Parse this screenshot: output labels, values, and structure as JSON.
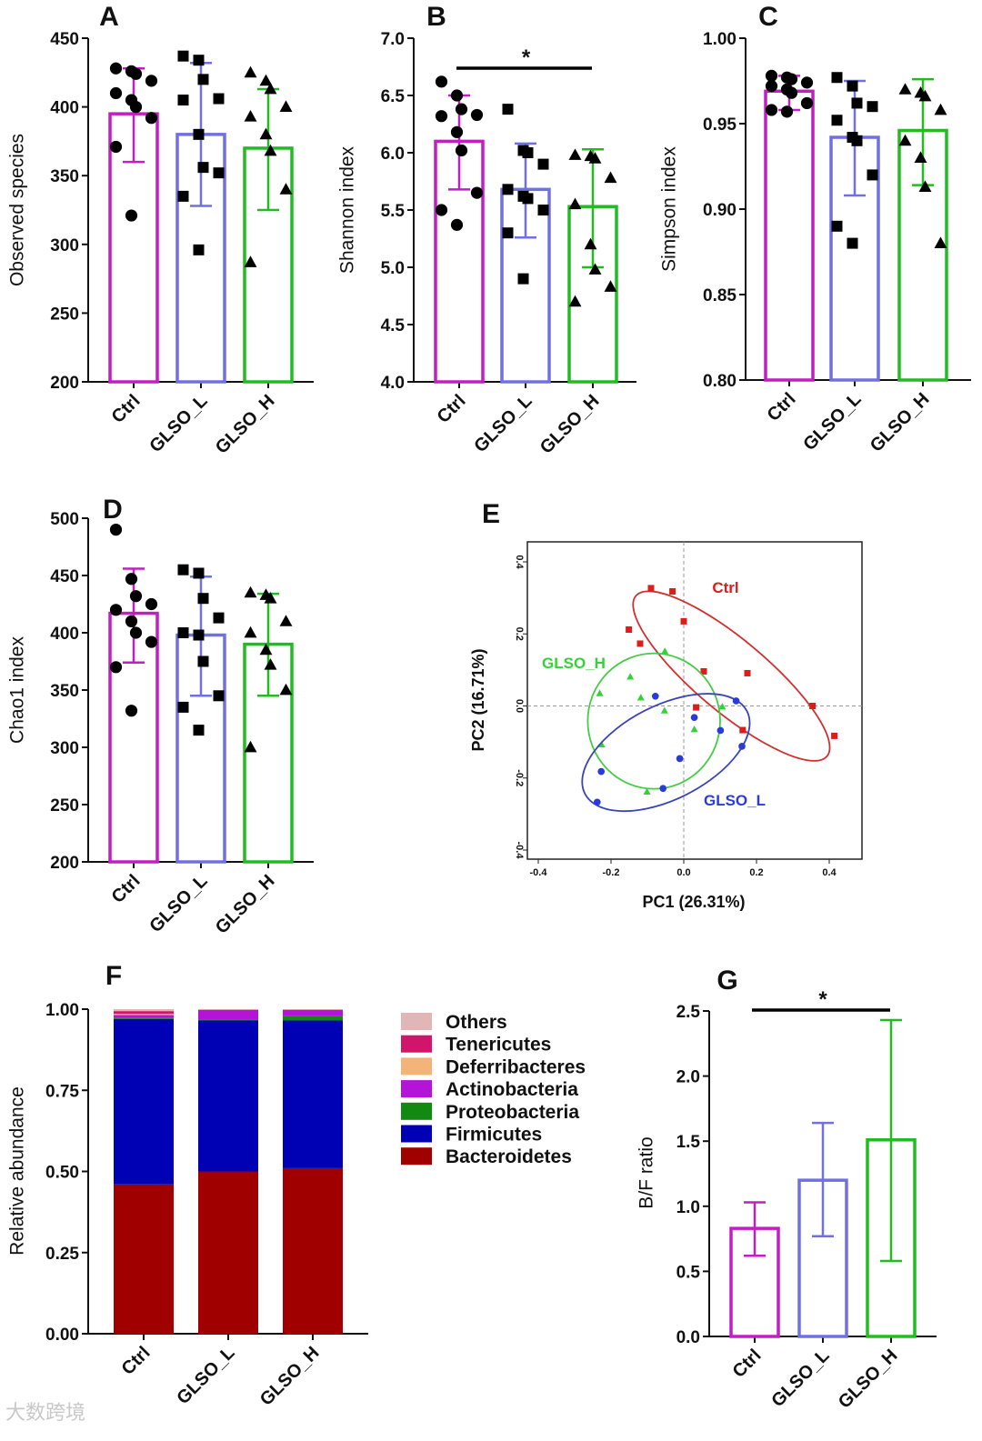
{
  "colors": {
    "Ctrl": "#c21fc2",
    "GLSO_L": "#7070e0",
    "GLSO_H": "#22bb22"
  },
  "watermark": "大数跨境",
  "chart_data": [
    {
      "type": "bar",
      "letter": "A",
      "ylabel": "Observed species",
      "ylim": [
        200,
        450
      ],
      "ticks": [
        200,
        250,
        300,
        350,
        400,
        450
      ],
      "tick_labels": [
        "200",
        "250",
        "300",
        "350",
        "400",
        "450"
      ],
      "categories": [
        "Ctrl",
        "GLSO_L",
        "GLSO_H"
      ],
      "means": [
        395,
        380,
        370
      ],
      "err_low": [
        360,
        328,
        325
      ],
      "err_high": [
        428,
        432,
        413
      ],
      "markers": [
        "circle",
        "square",
        "triangle"
      ],
      "points": [
        [
          428,
          426,
          424,
          419,
          410,
          405,
          400,
          392,
          371,
          321
        ],
        [
          437,
          434,
          420,
          406,
          405,
          380,
          356,
          352,
          335,
          296
        ],
        [
          425,
          419,
          413,
          400,
          393,
          380,
          368,
          340,
          287
        ]
      ],
      "significance": null
    },
    {
      "type": "bar",
      "letter": "B",
      "ylabel": "Shannon index",
      "ylim": [
        4.0,
        7.0
      ],
      "ticks": [
        4.0,
        4.5,
        5.0,
        5.5,
        6.0,
        6.5,
        7.0
      ],
      "tick_labels": [
        "4.0",
        "4.5",
        "5.0",
        "5.5",
        "6.0",
        "6.5",
        "7.0"
      ],
      "categories": [
        "Ctrl",
        "GLSO_L",
        "GLSO_H"
      ],
      "means": [
        6.1,
        5.68,
        5.53
      ],
      "err_low": [
        5.68,
        5.26,
        5.0
      ],
      "err_high": [
        6.5,
        6.08,
        6.03
      ],
      "markers": [
        "circle",
        "square",
        "triangle"
      ],
      "points": [
        [
          6.62,
          6.5,
          6.38,
          6.33,
          6.32,
          6.18,
          6.02,
          5.65,
          5.5,
          5.37
        ],
        [
          6.38,
          6.02,
          6.0,
          5.9,
          5.68,
          5.62,
          5.6,
          5.5,
          5.3,
          4.9
        ],
        [
          5.98,
          5.97,
          5.95,
          5.78,
          5.55,
          5.2,
          4.98,
          4.83,
          4.7
        ]
      ],
      "significance": {
        "from": "Ctrl",
        "to": "GLSO_H",
        "label": "*"
      }
    },
    {
      "type": "bar",
      "letter": "C",
      "ylabel": "Simpson index",
      "ylim": [
        0.8,
        1.0
      ],
      "ticks": [
        0.8,
        0.85,
        0.9,
        0.95,
        1.0
      ],
      "tick_labels": [
        "0.80",
        "0.85",
        "0.90",
        "0.95",
        "1.00"
      ],
      "categories": [
        "Ctrl",
        "GLSO_L",
        "GLSO_H"
      ],
      "means": [
        0.969,
        0.942,
        0.946
      ],
      "err_low": [
        0.958,
        0.908,
        0.914
      ],
      "err_high": [
        0.978,
        0.975,
        0.976
      ],
      "markers": [
        "circle",
        "square",
        "triangle"
      ],
      "points": [
        [
          0.978,
          0.977,
          0.976,
          0.974,
          0.972,
          0.97,
          0.968,
          0.962,
          0.958,
          0.957
        ],
        [
          0.977,
          0.972,
          0.962,
          0.96,
          0.952,
          0.942,
          0.94,
          0.92,
          0.89,
          0.88
        ],
        [
          0.97,
          0.968,
          0.966,
          0.958,
          0.94,
          0.93,
          0.913,
          0.88
        ]
      ],
      "significance": null
    },
    {
      "type": "bar",
      "letter": "D",
      "ylabel": "Chao1 index",
      "ylim": [
        200,
        500
      ],
      "ticks": [
        200,
        250,
        300,
        350,
        400,
        450,
        500
      ],
      "tick_labels": [
        "200",
        "250",
        "300",
        "350",
        "400",
        "450",
        "500"
      ],
      "categories": [
        "Ctrl",
        "GLSO_L",
        "GLSO_H"
      ],
      "means": [
        417,
        398,
        390
      ],
      "err_low": [
        374,
        345,
        345
      ],
      "err_high": [
        456,
        449,
        434
      ],
      "markers": [
        "circle",
        "square",
        "triangle"
      ],
      "points": [
        [
          490,
          447,
          432,
          425,
          420,
          410,
          400,
          392,
          370,
          332
        ],
        [
          455,
          452,
          430,
          413,
          400,
          398,
          375,
          345,
          335,
          315
        ],
        [
          435,
          433,
          430,
          410,
          400,
          385,
          372,
          350,
          300
        ]
      ],
      "significance": null
    },
    {
      "type": "scatter",
      "letter": "E",
      "xlabel": "PC1 (26.31%)",
      "ylabel": "PC2 (16.71%)",
      "xlim": [
        -0.45,
        0.45
      ],
      "ylim": [
        -0.45,
        0.45
      ],
      "ticks": [
        -0.4,
        -0.2,
        0.0,
        0.2,
        0.4
      ],
      "tick_labels": [
        "-0.4",
        "-0.2",
        "0.0",
        "0.2",
        "0.4"
      ],
      "series": [
        {
          "name": "Ctrl",
          "marker": "square",
          "x": [
            -0.09,
            -0.031,
            0.0,
            -0.151,
            -0.12,
            0.055,
            0.175,
            0.034,
            0.354,
            0.162,
            0.414
          ],
          "y": [
            0.327,
            0.318,
            0.235,
            0.212,
            0.173,
            0.096,
            0.091,
            -0.004,
            0.0,
            -0.067,
            -0.083
          ],
          "ellipse": {
            "cx": 0.131,
            "cy": 0.083,
            "rx": 0.343,
            "ry": 0.1,
            "angle": -40
          }
        },
        {
          "name": "GLSO_H",
          "marker": "triangle",
          "x": [
            -0.052,
            -0.147,
            -0.231,
            -0.118,
            -0.053,
            0.106,
            0.029,
            -0.226,
            -0.101
          ],
          "y": [
            0.152,
            0.081,
            0.035,
            0.023,
            -0.013,
            -0.002,
            -0.065,
            -0.107,
            -0.238
          ],
          "ellipse": {
            "cx": -0.082,
            "cy": -0.042,
            "rx": 0.182,
            "ry": 0.188,
            "angle": 0
          }
        },
        {
          "name": "GLSO_L",
          "marker": "circle",
          "x": [
            -0.078,
            0.144,
            0.029,
            0.101,
            0.16,
            -0.011,
            -0.227,
            -0.057,
            -0.238
          ],
          "y": [
            0.027,
            0.014,
            -0.032,
            -0.068,
            -0.112,
            -0.146,
            -0.182,
            -0.229,
            -0.267
          ],
          "ellipse": {
            "cx": -0.049,
            "cy": -0.129,
            "rx": 0.25,
            "ry": 0.13,
            "angle": 27
          }
        }
      ]
    },
    {
      "type": "bar",
      "stacked": true,
      "letter": "F",
      "ylabel": "Relative abundance",
      "ylim": [
        0,
        1
      ],
      "ticks": [
        0,
        0.25,
        0.5,
        0.75,
        1.0
      ],
      "tick_labels": [
        "0.00",
        "0.25",
        "0.50",
        "0.75",
        "1.00"
      ],
      "categories": [
        "Ctrl",
        "GLSO_L",
        "GLSO_H"
      ],
      "series": [
        {
          "name": "Bacteroidetes",
          "color": "#a00000",
          "values": [
            0.46,
            0.5,
            0.51
          ]
        },
        {
          "name": "Firmicutes",
          "color": "#0000b4",
          "values": [
            0.51,
            0.465,
            0.455
          ]
        },
        {
          "name": "Proteobacteria",
          "color": "#128a12",
          "values": [
            0.004,
            0.003,
            0.015
          ]
        },
        {
          "name": "Actinobacteria",
          "color": "#b414d8",
          "values": [
            0.008,
            0.03,
            0.018
          ]
        },
        {
          "name": "Deferribacteres",
          "color": "#f3b47a",
          "values": [
            0.004,
            0.001,
            0.001
          ]
        },
        {
          "name": "Tenericutes",
          "color": "#d0156a",
          "values": [
            0.008,
            0.0005,
            0.0005
          ]
        },
        {
          "name": "Others",
          "color": "#e2b6b6",
          "values": [
            0.006,
            0.0005,
            0.0005
          ]
        }
      ],
      "legend": [
        "Others",
        "Tenericutes",
        "Deferribacteres",
        "Actinobacteria",
        "Proteobacteria",
        "Firmicutes",
        "Bacteroidetes"
      ],
      "legend_position": "right"
    },
    {
      "type": "bar",
      "letter": "G",
      "ylabel": "B/F ratio",
      "ylim": [
        0,
        2.5
      ],
      "ticks": [
        0,
        0.5,
        1.0,
        1.5,
        2.0,
        2.5
      ],
      "tick_labels": [
        "0.0",
        "0.5",
        "1.0",
        "1.5",
        "2.0",
        "2.5"
      ],
      "categories": [
        "Ctrl",
        "GLSO_L",
        "GLSO_H"
      ],
      "means": [
        0.83,
        1.2,
        1.51
      ],
      "err_low": [
        0.62,
        0.77,
        0.58
      ],
      "err_high": [
        1.03,
        1.64,
        2.43
      ],
      "markers": null,
      "points": null,
      "significance": {
        "from": "Ctrl",
        "to": "GLSO_H",
        "label": "*"
      }
    }
  ]
}
